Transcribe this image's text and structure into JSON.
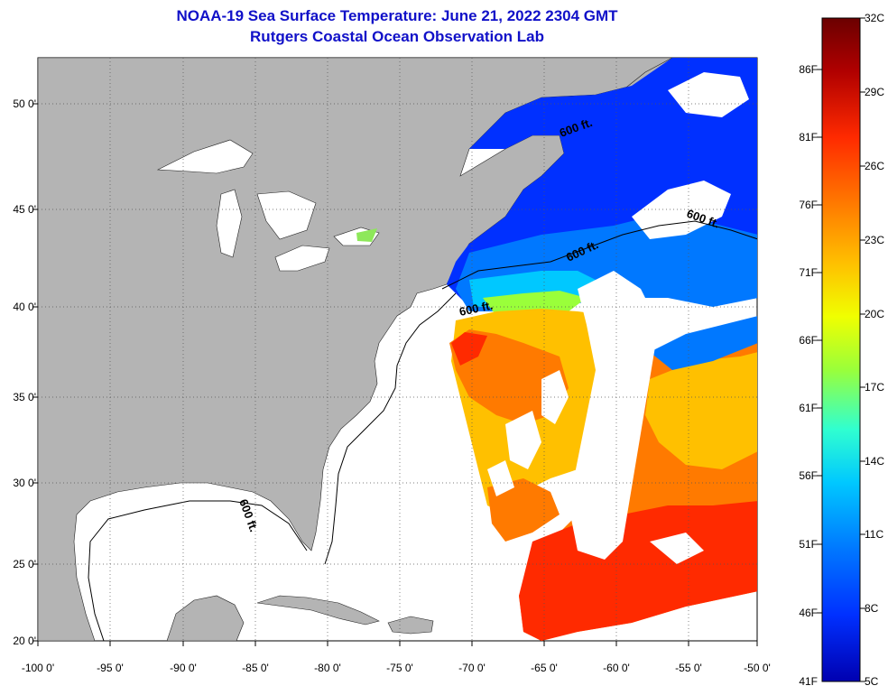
{
  "title": {
    "line1": "NOAA-19 Sea Surface Temperature:  June 21, 2022 2304 GMT",
    "line2": "Rutgers Coastal Ocean Observation Lab"
  },
  "map": {
    "lat_labels": [
      "50 0'",
      "45 0'",
      "40 0'",
      "35 0'",
      "30 0'",
      "25 0'",
      "20 0'"
    ],
    "lon_labels": [
      "-100 0'",
      "-95 0'",
      "-90 0'",
      "-85 0'",
      "-80 0'",
      "-75 0'",
      "-70 0'",
      "-65 0'",
      "-60 0'",
      "-55 0'",
      "-50 0'"
    ],
    "contour_label": "600 ft.",
    "colors": {
      "land": "#b4b4b4",
      "ocean_background": "#ffffff",
      "cloud": "#ffffff"
    }
  },
  "colorbar": {
    "fahrenheit": [
      "86F",
      "81F",
      "76F",
      "71F",
      "66F",
      "61F",
      "56F",
      "51F",
      "46F",
      "41F"
    ],
    "celsius": [
      "32C",
      "29C",
      "26C",
      "23C",
      "20C",
      "17C",
      "14C",
      "11C",
      "8C",
      "5C"
    ],
    "range_c": [
      5,
      32
    ],
    "gradient": [
      "#6b0000",
      "#b00000",
      "#ff2a00",
      "#ff7a00",
      "#ffc000",
      "#f0ff00",
      "#9aff3a",
      "#30ffd0",
      "#00c8ff",
      "#0078ff",
      "#0030ff",
      "#0000b0"
    ]
  }
}
